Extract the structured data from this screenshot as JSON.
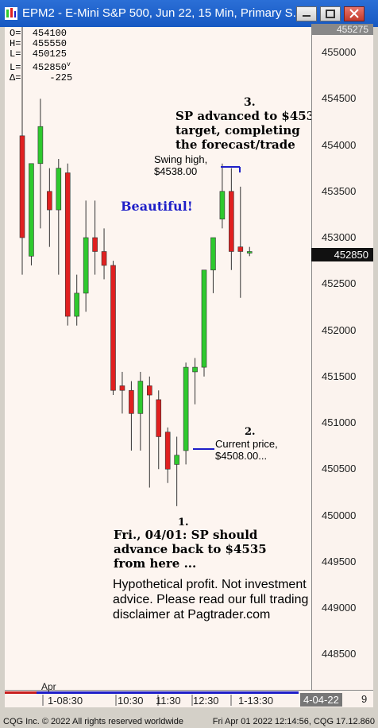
{
  "window": {
    "title": "EPM2 - E-Mini S&P 500, Jun 22, 15 Min, Primary S..."
  },
  "ohlc": {
    "open": "O=  454100",
    "high": "H=  455550",
    "low": "L=  450125",
    "last": "L=  452850",
    "last_marker": "v",
    "delta": "Δ=     -225"
  },
  "price_axis": {
    "top_label": "455275",
    "ticks": [
      "455000",
      "454500",
      "454000",
      "453500",
      "453000",
      "452500",
      "452000",
      "451500",
      "451000",
      "450500",
      "450000",
      "449500",
      "449000",
      "448500"
    ],
    "last_price": "452850"
  },
  "annotations": {
    "beautiful": "Beautiful!",
    "label3_num": "3.",
    "label3_line1": "SP advanced to $453",
    "label3_line2": "target, completing",
    "label3_line3": "the forecast/trade",
    "swing_high_line1": "Swing high,",
    "swing_high_line2": "$4538.00",
    "label2_num": "2.",
    "current_price_line1": "Current price,",
    "current_price_line2": "$4508.00...",
    "label1_num": "1.",
    "label1_line1": "Fri., 04/01: SP should",
    "label1_line2": "advance back to $4535",
    "label1_line3": "from here ...",
    "disclaimer": "Hypothetical profit. Not investment advice. Please read our full trading disclaimer at Pagtrader.com"
  },
  "time_axis": {
    "month": "Apr",
    "labels": [
      "1-08:30",
      "10:30",
      "11:30",
      "12:30",
      "1-13:30"
    ],
    "date_box": "4-04-22",
    "page": "9"
  },
  "status": {
    "left": "CQG Inc. © 2022 All rights reserved worldwide",
    "right": "Fri Apr 01 2022 12:14:56, CQG 17.12.860"
  },
  "colors": {
    "up": "#2ec92e",
    "down": "#e02020",
    "title_bar": "#1f63cf",
    "annotation_blue": "#1e1ec8"
  },
  "chart_data": {
    "type": "candlestick",
    "title": "EPM2 - E-Mini S&P 500, Jun 22, 15 Min",
    "ylim": [
      448250,
      455275
    ],
    "candles": [
      {
        "o": 4541.0,
        "h": 4555.5,
        "l": 4526.0,
        "c": 4530.0
      },
      {
        "o": 4528.0,
        "h": 4535.5,
        "l": 4527.0,
        "c": 4538.0
      },
      {
        "o": 4538.0,
        "h": 4545.0,
        "l": 4531.0,
        "c": 4542.0
      },
      {
        "o": 4535.0,
        "h": 4537.5,
        "l": 4529.0,
        "c": 4533.0
      },
      {
        "o": 4533.0,
        "h": 4538.5,
        "l": 4526.0,
        "c": 4537.5
      },
      {
        "o": 4537.0,
        "h": 4538.0,
        "l": 4520.5,
        "c": 4521.5
      },
      {
        "o": 4521.5,
        "h": 4526.0,
        "l": 4520.5,
        "c": 4524.0
      },
      {
        "o": 4524.0,
        "h": 4534.0,
        "l": 4522.0,
        "c": 4530.0
      },
      {
        "o": 4530.0,
        "h": 4534.0,
        "l": 4526.0,
        "c": 4528.5
      },
      {
        "o": 4528.5,
        "h": 4531.0,
        "l": 4525.5,
        "c": 4527.0
      },
      {
        "o": 4527.0,
        "h": 4527.5,
        "l": 4513.0,
        "c": 4513.5
      },
      {
        "o": 4514.0,
        "h": 4515.5,
        "l": 4511.0,
        "c": 4513.5
      },
      {
        "o": 4513.5,
        "h": 4514.5,
        "l": 4507.0,
        "c": 4511.0
      },
      {
        "o": 4511.0,
        "h": 4515.5,
        "l": 4507.0,
        "c": 4514.5
      },
      {
        "o": 4514.0,
        "h": 4515.0,
        "l": 4503.0,
        "c": 4513.0
      },
      {
        "o": 4512.5,
        "h": 4513.5,
        "l": 4505.0,
        "c": 4508.5
      },
      {
        "o": 4509.0,
        "h": 4509.5,
        "l": 4503.5,
        "c": 4505.0
      },
      {
        "o": 4505.5,
        "h": 4508.5,
        "l": 4501.0,
        "c": 4506.5
      },
      {
        "o": 4507.0,
        "h": 4516.5,
        "l": 4505.5,
        "c": 4516.0
      },
      {
        "o": 4515.5,
        "h": 4517.0,
        "l": 4512.0,
        "c": 4516.0
      },
      {
        "o": 4516.0,
        "h": 4526.5,
        "l": 4515.0,
        "c": 4526.5
      },
      {
        "o": 4526.5,
        "h": 4530.0,
        "l": 4524.0,
        "c": 4530.0
      },
      {
        "o": 4532.0,
        "h": 4538.0,
        "l": 4531.0,
        "c": 4535.0
      },
      {
        "o": 4535.0,
        "h": 4537.5,
        "l": 4526.5,
        "c": 4528.5
      },
      {
        "o": 4529.0,
        "h": 4535.5,
        "l": 4523.5,
        "c": 4528.5
      },
      {
        "o": 4528.5,
        "h": 4529.0,
        "l": 4528.0,
        "c": 4528.5
      }
    ]
  }
}
